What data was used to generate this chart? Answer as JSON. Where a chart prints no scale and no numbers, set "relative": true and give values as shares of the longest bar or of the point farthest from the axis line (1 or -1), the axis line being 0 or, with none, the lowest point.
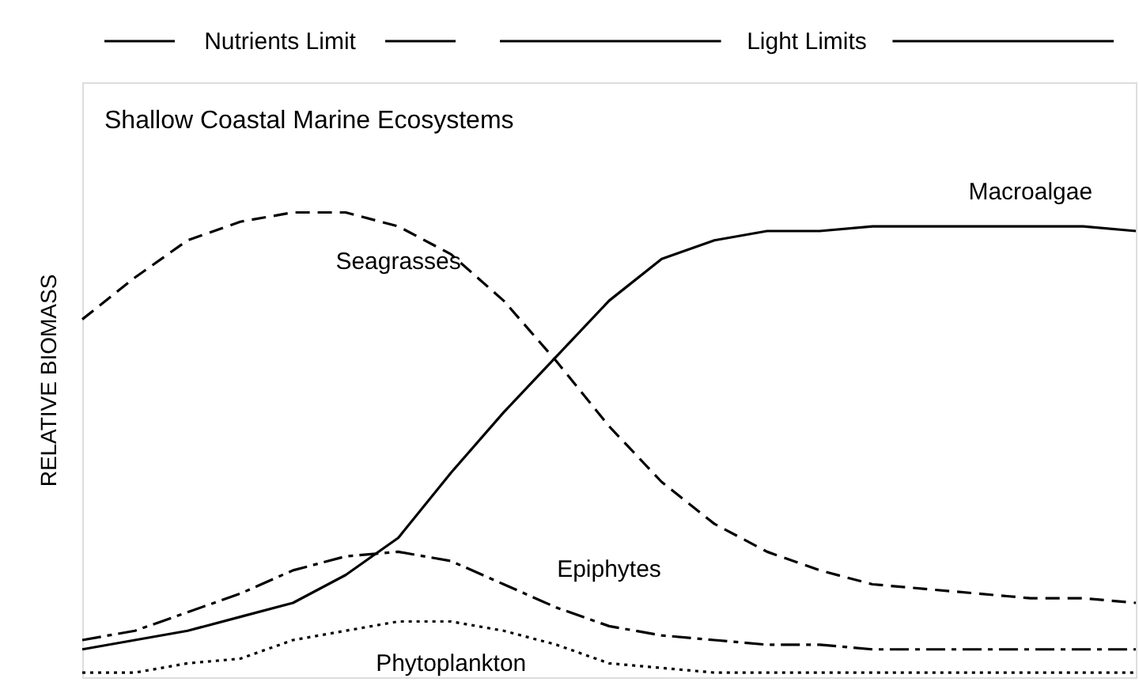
{
  "chart_data": {
    "type": "line",
    "title": "Shallow Coastal Marine Ecosystems",
    "ylabel": "RELATIVE BIOMASS",
    "relative": true,
    "grid": false,
    "marker": "none",
    "annotations": [
      "Nutrients Limit",
      "Light Limits"
    ],
    "categories": [
      null,
      null,
      null,
      null,
      null,
      null,
      null,
      null,
      null,
      null,
      null,
      null,
      null,
      null,
      null,
      null,
      null,
      null,
      null,
      null,
      null
    ],
    "series": [
      {
        "name": "Seagrasses",
        "color": "#000000",
        "line_style": "dashed",
        "values": [
          0.77,
          0.86,
          0.94,
          0.98,
          1.0,
          1.0,
          0.97,
          0.91,
          0.81,
          0.68,
          0.54,
          0.42,
          0.33,
          0.27,
          0.23,
          0.2,
          0.19,
          0.18,
          0.17,
          0.17,
          0.16
        ]
      },
      {
        "name": "Macroalgae",
        "color": "#000000",
        "line_style": "solid",
        "values": [
          0.06,
          0.08,
          0.1,
          0.13,
          0.16,
          0.22,
          0.3,
          0.44,
          0.57,
          0.69,
          0.81,
          0.9,
          0.94,
          0.96,
          0.96,
          0.97,
          0.97,
          0.97,
          0.97,
          0.97,
          0.96
        ]
      },
      {
        "name": "Epiphytes",
        "color": "#000000",
        "line_style": "dashdot",
        "values": [
          0.08,
          0.1,
          0.14,
          0.18,
          0.23,
          0.26,
          0.27,
          0.25,
          0.2,
          0.15,
          0.11,
          0.09,
          0.08,
          0.07,
          0.07,
          0.06,
          0.06,
          0.06,
          0.06,
          0.06,
          0.06
        ]
      },
      {
        "name": "Phytoplankton",
        "color": "#000000",
        "line_style": "dotted",
        "values": [
          0.01,
          0.01,
          0.03,
          0.04,
          0.08,
          0.1,
          0.12,
          0.12,
          0.1,
          0.07,
          0.03,
          0.02,
          0.01,
          0.01,
          0.01,
          0.01,
          0.01,
          0.01,
          0.01,
          0.01,
          0.01
        ]
      }
    ]
  }
}
